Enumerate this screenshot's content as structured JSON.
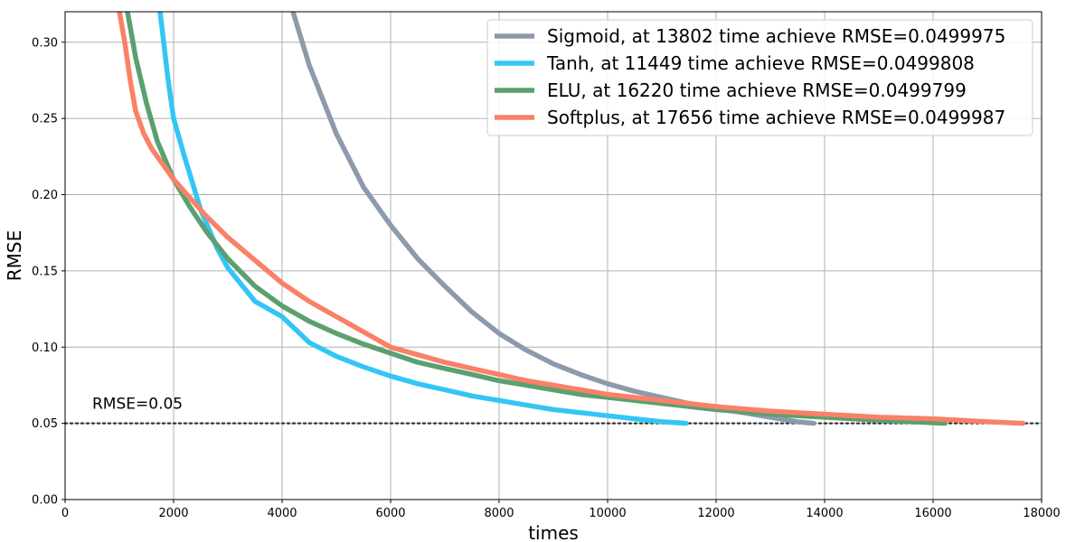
{
  "chart_data": {
    "type": "line",
    "title": "",
    "xlabel": "times",
    "ylabel": "RMSE",
    "xlim": [
      0,
      18000
    ],
    "ylim": [
      0,
      0.32
    ],
    "xticks": [
      0,
      2000,
      4000,
      6000,
      8000,
      10000,
      12000,
      14000,
      16000,
      18000
    ],
    "xtick_labels": [
      "0",
      "2000",
      "4000",
      "6000",
      "8000",
      "10000",
      "12000",
      "14000",
      "16000",
      "18000"
    ],
    "yticks": [
      0.0,
      0.05,
      0.1,
      0.15,
      0.2,
      0.25,
      0.3
    ],
    "ytick_labels": [
      "0.00",
      "0.05",
      "0.10",
      "0.15",
      "0.20",
      "0.25",
      "0.30"
    ],
    "grid": true,
    "legend_position": "top-right",
    "threshold": {
      "value": 0.05,
      "label": "RMSE=0.05",
      "color": "#333333"
    },
    "series": [
      {
        "name": "Sigmoid, at 13802 time achieve RMSE=0.0499975",
        "color": "#8c9aab",
        "x": [
          4200,
          4500,
          5000,
          5500,
          6000,
          6500,
          7000,
          7500,
          8000,
          8500,
          9000,
          9500,
          10000,
          10500,
          11000,
          11500,
          12000,
          12500,
          13000,
          13500,
          13802
        ],
        "y": [
          0.32,
          0.285,
          0.24,
          0.205,
          0.18,
          0.158,
          0.14,
          0.123,
          0.109,
          0.098,
          0.089,
          0.082,
          0.076,
          0.071,
          0.067,
          0.063,
          0.06,
          0.057,
          0.054,
          0.051,
          0.05
        ]
      },
      {
        "name": "Tanh, at 11449 time achieve RMSE=0.0499808",
        "color": "#33c6f5",
        "x": [
          1750,
          1900,
          2000,
          2200,
          2500,
          2800,
          3000,
          3500,
          4000,
          4500,
          5000,
          5500,
          6000,
          6500,
          7000,
          7500,
          8000,
          8500,
          9000,
          9500,
          10000,
          10500,
          11000,
          11449
        ],
        "y": [
          0.32,
          0.275,
          0.25,
          0.225,
          0.19,
          0.165,
          0.152,
          0.13,
          0.12,
          0.103,
          0.094,
          0.087,
          0.081,
          0.076,
          0.072,
          0.068,
          0.065,
          0.062,
          0.059,
          0.057,
          0.055,
          0.053,
          0.051,
          0.05
        ]
      },
      {
        "name": "ELU, at 16220 time achieve RMSE=0.0499799",
        "color": "#5aa070",
        "x": [
          1150,
          1300,
          1500,
          1700,
          2000,
          2300,
          2600,
          3000,
          3500,
          4000,
          4500,
          5000,
          5500,
          6000,
          6500,
          7000,
          7500,
          8000,
          8500,
          9000,
          9500,
          10000,
          11000,
          12000,
          13000,
          14000,
          15000,
          16220
        ],
        "y": [
          0.32,
          0.29,
          0.26,
          0.235,
          0.21,
          0.192,
          0.176,
          0.158,
          0.14,
          0.127,
          0.117,
          0.109,
          0.102,
          0.096,
          0.09,
          0.086,
          0.082,
          0.078,
          0.075,
          0.072,
          0.069,
          0.067,
          0.063,
          0.059,
          0.056,
          0.054,
          0.052,
          0.05
        ]
      },
      {
        "name": "Softplus, at 17656 time achieve RMSE=0.0499987",
        "color": "#fa8068",
        "x": [
          1000,
          1100,
          1200,
          1300,
          1450,
          1600,
          1800,
          2000,
          2300,
          2600,
          3000,
          3500,
          4000,
          4500,
          5000,
          5500,
          6000,
          6500,
          7000,
          7500,
          8000,
          8500,
          9000,
          9500,
          10000,
          11000,
          12000,
          13000,
          14000,
          15000,
          16000,
          17000,
          17656
        ],
        "y": [
          0.32,
          0.3,
          0.275,
          0.255,
          0.24,
          0.23,
          0.22,
          0.21,
          0.198,
          0.186,
          0.172,
          0.157,
          0.142,
          0.13,
          0.12,
          0.11,
          0.1,
          0.095,
          0.09,
          0.086,
          0.082,
          0.078,
          0.075,
          0.072,
          0.069,
          0.065,
          0.061,
          0.058,
          0.056,
          0.054,
          0.053,
          0.051,
          0.05
        ]
      }
    ]
  }
}
